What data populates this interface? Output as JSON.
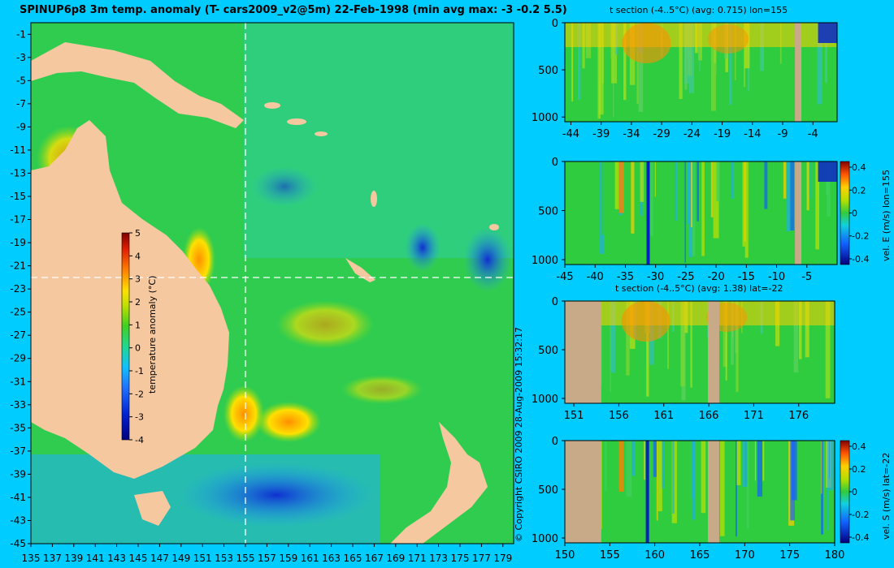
{
  "title": "SPINUP6p8 3m temp. anomaly (T- cars2009_v2@5m) 22-Feb-1998 (min avg max: -3 -0.2 5.5)",
  "copyright": "© Copyright CSIRO 2009   28-Aug-2009 15:32:17",
  "colors": {
    "background": "#00ccff",
    "land": "#f5c8a0",
    "section_land": "#c8aa88"
  },
  "chart_data": [
    {
      "type": "heatmap",
      "name": "map",
      "title": "SPINUP6p8 3m temp. anomaly (T- cars2009_v2@5m) 22-Feb-1998 (min avg max: -3 -0.2 5.5)",
      "xlim": [
        135,
        180
      ],
      "ylim": [
        -45,
        0
      ],
      "xticks": [
        "135",
        "137",
        "139",
        "141",
        "143",
        "145",
        "147",
        "149",
        "151",
        "153",
        "155",
        "157",
        "159",
        "161",
        "163",
        "165",
        "167",
        "169",
        "171",
        "173",
        "175",
        "177",
        "179"
      ],
      "yticks": [
        "-1",
        "-3",
        "-5",
        "-7",
        "-9",
        "-11",
        "-13",
        "-15",
        "-17",
        "-19",
        "-21",
        "-23",
        "-25",
        "-27",
        "-29",
        "-31",
        "-33",
        "-35",
        "-37",
        "-39",
        "-41",
        "-43",
        "-45"
      ],
      "crosshair": {
        "lon": 155,
        "lat": -22
      },
      "colorbar": {
        "label": "temperature anomaly (°C)",
        "min": -4,
        "max": 5,
        "ticks": [
          "5",
          "4",
          "3",
          "2",
          "1",
          "0",
          "-1",
          "-2",
          "-3",
          "-4"
        ]
      }
    },
    {
      "type": "heatmap",
      "name": "t-section-lon155",
      "title": "t section (-4..5°C) (avg: 0.715) lon=155",
      "xlim": [
        -45,
        0
      ],
      "xticks": [
        "-44",
        "-39",
        "-34",
        "-29",
        "-24",
        "-19",
        "-14",
        "-9",
        "-4"
      ],
      "yticks": [
        "0",
        "500",
        "1000"
      ]
    },
    {
      "type": "heatmap",
      "name": "vel-e-lon155",
      "title": "",
      "xlim": [
        -45,
        0
      ],
      "xticks": [
        "-45",
        "-40",
        "-35",
        "-30",
        "-25",
        "-20",
        "-15",
        "-10",
        "-5"
      ],
      "yticks": [
        "0",
        "500",
        "1000"
      ],
      "colorbar": {
        "label": "vel. E (m/s) lon=155",
        "ticks": [
          "0.4",
          "0.2",
          "0",
          "-0.2",
          "-0.4"
        ]
      }
    },
    {
      "type": "heatmap",
      "name": "t-section-lat-22",
      "title": "t section (-4..5°C) (avg: 1.38) lat=-22",
      "xlim": [
        150,
        180
      ],
      "xticks": [
        "151",
        "156",
        "161",
        "166",
        "171",
        "176"
      ],
      "yticks": [
        "0",
        "500",
        "1000"
      ]
    },
    {
      "type": "heatmap",
      "name": "vel-s-lat-22",
      "title": "",
      "xlim": [
        150,
        180
      ],
      "xticks": [
        "150",
        "155",
        "160",
        "165",
        "170",
        "175",
        "180"
      ],
      "yticks": [
        "0",
        "500",
        "1000"
      ],
      "colorbar": {
        "label": "vel. S (m/s) lat=-22",
        "ticks": [
          "0.4",
          "0.2",
          "0",
          "-0.2",
          "-0.4"
        ]
      }
    }
  ]
}
